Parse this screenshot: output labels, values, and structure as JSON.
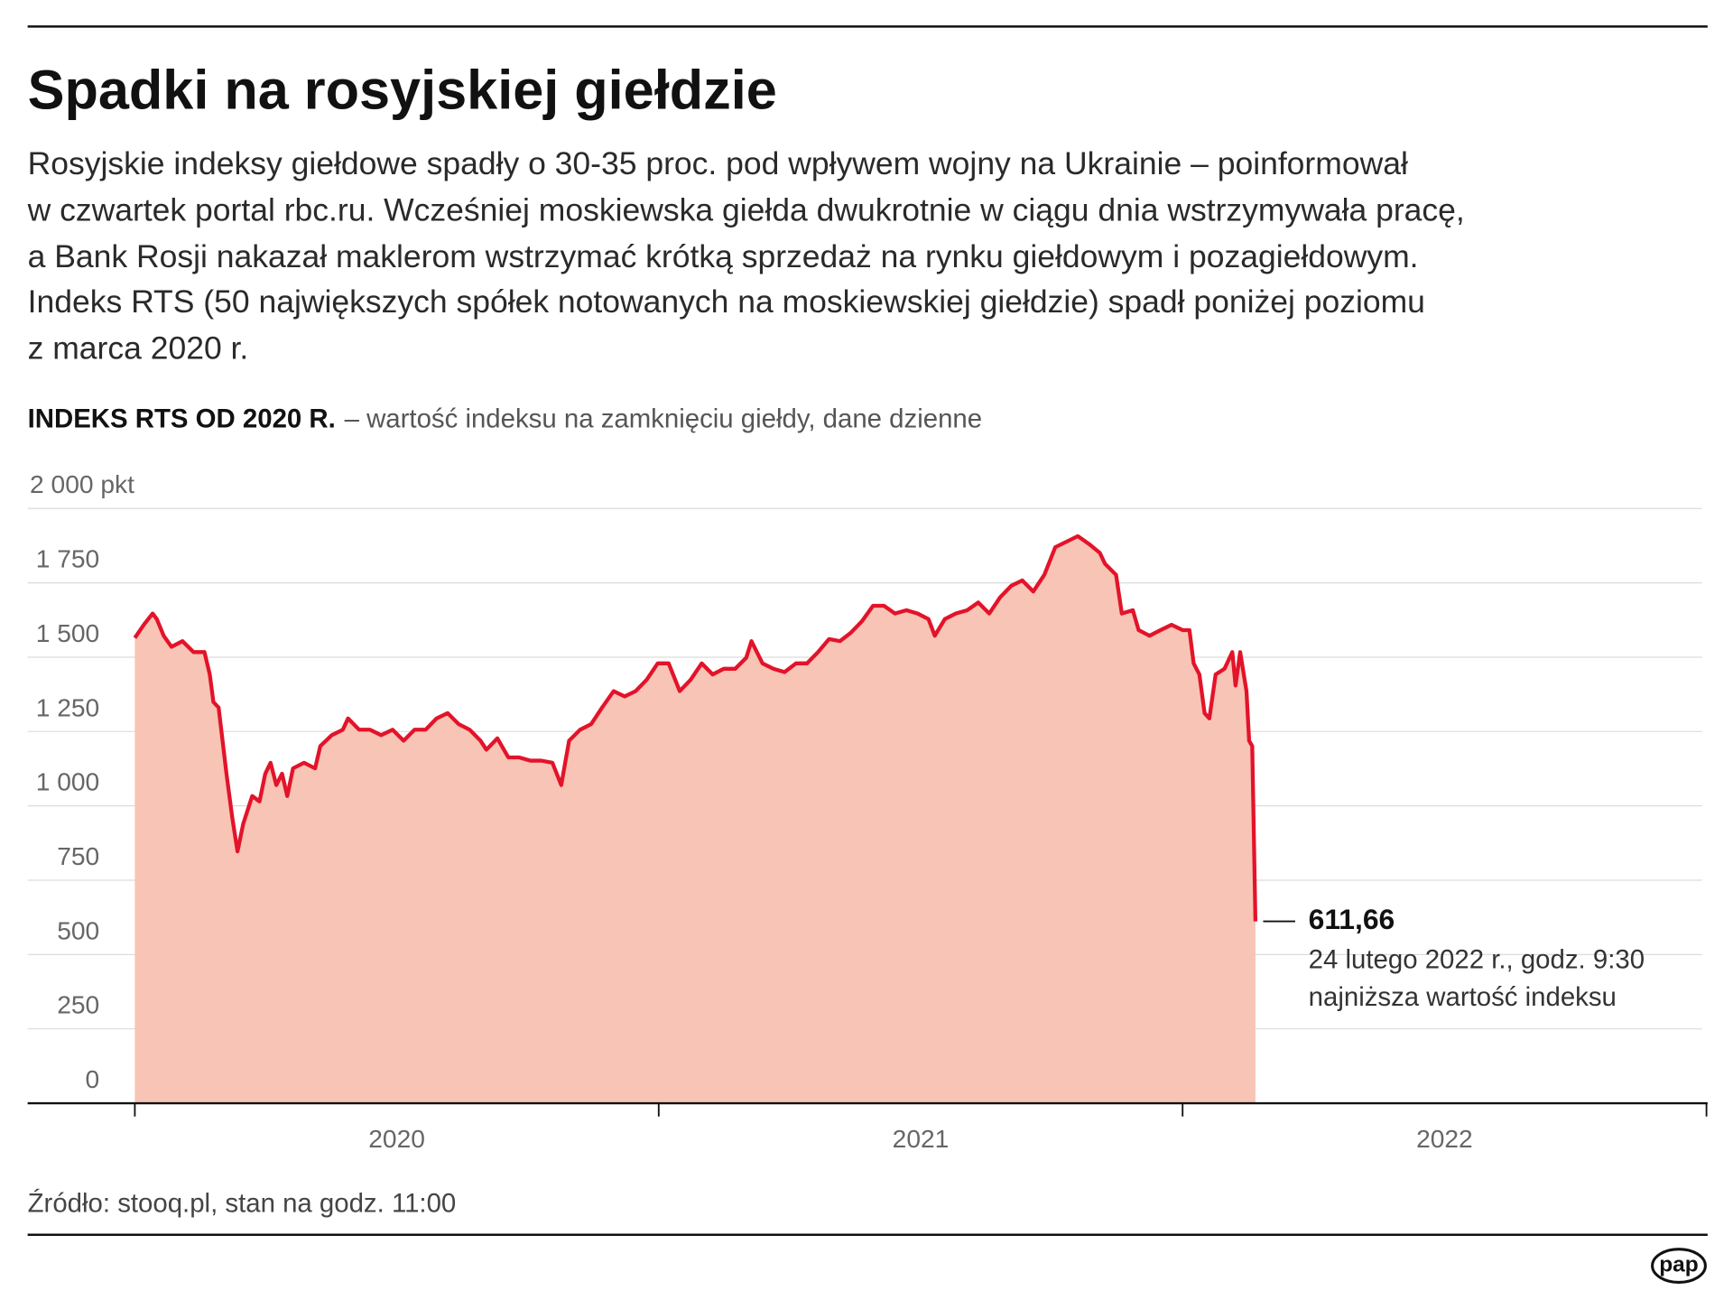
{
  "chart_data": {
    "type": "area",
    "title": "Spadki na rosyjskiej giełdzie",
    "description": [
      "Rosyjskie indeksy giełdowe spadły o 30-35 proc. pod wpływem wojny na Ukrainie – poinformował",
      "w czwartek portal rbc.ru. Wcześniej moskiewska giełda dwukrotnie w ciągu dnia wstrzymywała pracę,",
      "a Bank Rosji nakazał maklerom wstrzymać krótką sprzedaż na rynku giełdowym i pozagiełdowym.",
      "Indeks RTS (50 największych spółek notowanych na moskiewskiej giełdzie) spadł poniżej poziomu",
      "z marca 2020 r."
    ],
    "subtitle": "INDEKS RTS OD 2020 R.",
    "subtitle_note": "– wartość indeksu na zamknięciu giełdy, dane dzienne",
    "source": "Źródło: stooq.pl, stan na godz. 11:00",
    "logo": "pap",
    "line_color": "#e3132a",
    "fill_color": "#f7c4b5",
    "grid": true,
    "xlim": [
      2020,
      2023
    ],
    "xticks": [
      {
        "value": 2020.5,
        "label": "2020"
      },
      {
        "value": 2021.5,
        "label": "2021"
      },
      {
        "value": 2022.5,
        "label": "2022"
      }
    ],
    "ylim": [
      0,
      2000
    ],
    "yticks": [
      0,
      250,
      500,
      750,
      {
        "value": 1000,
        "label": "1 000"
      },
      {
        "value": 1250,
        "label": "1 250"
      },
      {
        "value": 1500,
        "label": "1 500"
      },
      {
        "value": 1750,
        "label": "1 750"
      },
      {
        "value": 2000,
        "label": "2 000 pkt"
      }
    ],
    "x": [
      2020.0,
      2020.017,
      2020.034,
      2020.042,
      2020.055,
      2020.07,
      2020.091,
      2020.112,
      2020.133,
      2020.143,
      2020.15,
      2020.16,
      2020.175,
      2020.186,
      2020.196,
      2020.207,
      2020.224,
      2020.238,
      2020.249,
      2020.259,
      2020.27,
      2020.281,
      2020.291,
      2020.302,
      2020.323,
      2020.344,
      2020.354,
      2020.376,
      2020.397,
      2020.407,
      2020.428,
      2020.449,
      2020.47,
      2020.492,
      2020.513,
      2020.534,
      2020.555,
      2020.576,
      2020.597,
      2020.618,
      2020.639,
      2020.66,
      2020.671,
      2020.692,
      2020.713,
      2020.734,
      2020.755,
      2020.776,
      2020.797,
      2020.814,
      2020.829,
      2020.85,
      2020.871,
      2020.892,
      2020.914,
      2020.935,
      2020.956,
      2020.977,
      2020.998,
      2021.019,
      2021.04,
      2021.061,
      2021.082,
      2021.103,
      2021.124,
      2021.146,
      2021.167,
      2021.177,
      2021.198,
      2021.219,
      2021.24,
      2021.262,
      2021.283,
      2021.304,
      2021.325,
      2021.346,
      2021.367,
      2021.388,
      2021.409,
      2021.43,
      2021.451,
      2021.473,
      2021.494,
      2021.515,
      2021.527,
      2021.546,
      2021.567,
      2021.589,
      2021.61,
      2021.631,
      2021.652,
      2021.673,
      2021.694,
      2021.715,
      2021.736,
      2021.757,
      2021.778,
      2021.8,
      2021.821,
      2021.842,
      2021.852,
      2021.873,
      2021.884,
      2021.905,
      2021.916,
      2021.937,
      2021.958,
      2021.979,
      2022.0,
      2022.013,
      2022.021,
      2022.032,
      2022.042,
      2022.051,
      2022.063,
      2022.08,
      2022.095,
      2022.101,
      2022.11,
      2022.122,
      2022.127,
      2022.133,
      2022.139
    ],
    "values": [
      1565,
      1609,
      1647,
      1628,
      1572,
      1535,
      1554,
      1517,
      1517,
      1442,
      1349,
      1331,
      1108,
      959,
      847,
      940,
      1033,
      1015,
      1108,
      1145,
      1070,
      1108,
      1033,
      1126,
      1145,
      1126,
      1201,
      1238,
      1256,
      1294,
      1256,
      1256,
      1238,
      1256,
      1219,
      1256,
      1256,
      1294,
      1312,
      1275,
      1256,
      1219,
      1189,
      1227,
      1163,
      1163,
      1152,
      1152,
      1145,
      1070,
      1219,
      1256,
      1275,
      1331,
      1386,
      1368,
      1386,
      1424,
      1479,
      1479,
      1386,
      1424,
      1479,
      1442,
      1461,
      1461,
      1498,
      1554,
      1479,
      1461,
      1450,
      1479,
      1479,
      1517,
      1561,
      1554,
      1583,
      1621,
      1673,
      1673,
      1647,
      1658,
      1647,
      1628,
      1572,
      1628,
      1647,
      1658,
      1684,
      1647,
      1702,
      1740,
      1758,
      1721,
      1777,
      1870,
      1888,
      1907,
      1881,
      1851,
      1814,
      1777,
      1647,
      1658,
      1591,
      1572,
      1591,
      1609,
      1591,
      1591,
      1479,
      1442,
      1312,
      1294,
      1442,
      1461,
      1517,
      1405,
      1517,
      1386,
      1219,
      1201,
      611.66
    ],
    "annotation": {
      "label": "611,66",
      "lines": [
        "24 lutego 2022 r., godz. 9:30",
        "najniższa wartość indeksu"
      ]
    }
  }
}
